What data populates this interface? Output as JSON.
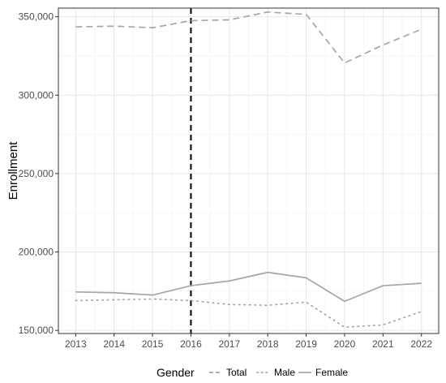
{
  "chart_data": {
    "type": "line",
    "xlabel": "",
    "ylabel": "Enrollment",
    "x": [
      2013,
      2014,
      2015,
      2016,
      2017,
      2018,
      2019,
      2020,
      2021,
      2022
    ],
    "x_ticks": [
      "2013",
      "2014",
      "2015",
      "2016",
      "2017",
      "2018",
      "2019",
      "2020",
      "2021",
      "2022"
    ],
    "ylim": [
      148000,
      355500
    ],
    "y_ticks": [
      150000,
      200000,
      250000,
      300000,
      350000
    ],
    "y_tick_labels": [
      "150,000",
      "200,000",
      "250,000",
      "300,000",
      "350,000"
    ],
    "grid": true,
    "legend": {
      "title": "Gender",
      "position": "bottom"
    },
    "reference_line": {
      "x": 2016,
      "style": "dashed",
      "color": "#000000"
    },
    "series": [
      {
        "name": "Total",
        "style": "dashed",
        "color": "#a6a6a6",
        "values": [
          343500,
          344000,
          343000,
          347500,
          348000,
          353000,
          351500,
          320500,
          332000,
          342000
        ]
      },
      {
        "name": "Male",
        "style": "dotted",
        "color": "#a6a6a6",
        "values": [
          169000,
          169500,
          170000,
          169000,
          166500,
          166000,
          168000,
          152000,
          153500,
          162000
        ]
      },
      {
        "name": "Female",
        "style": "solid",
        "color": "#a6a6a6",
        "values": [
          174500,
          174000,
          172500,
          178500,
          181500,
          187000,
          183500,
          168500,
          178500,
          180000
        ]
      }
    ]
  }
}
